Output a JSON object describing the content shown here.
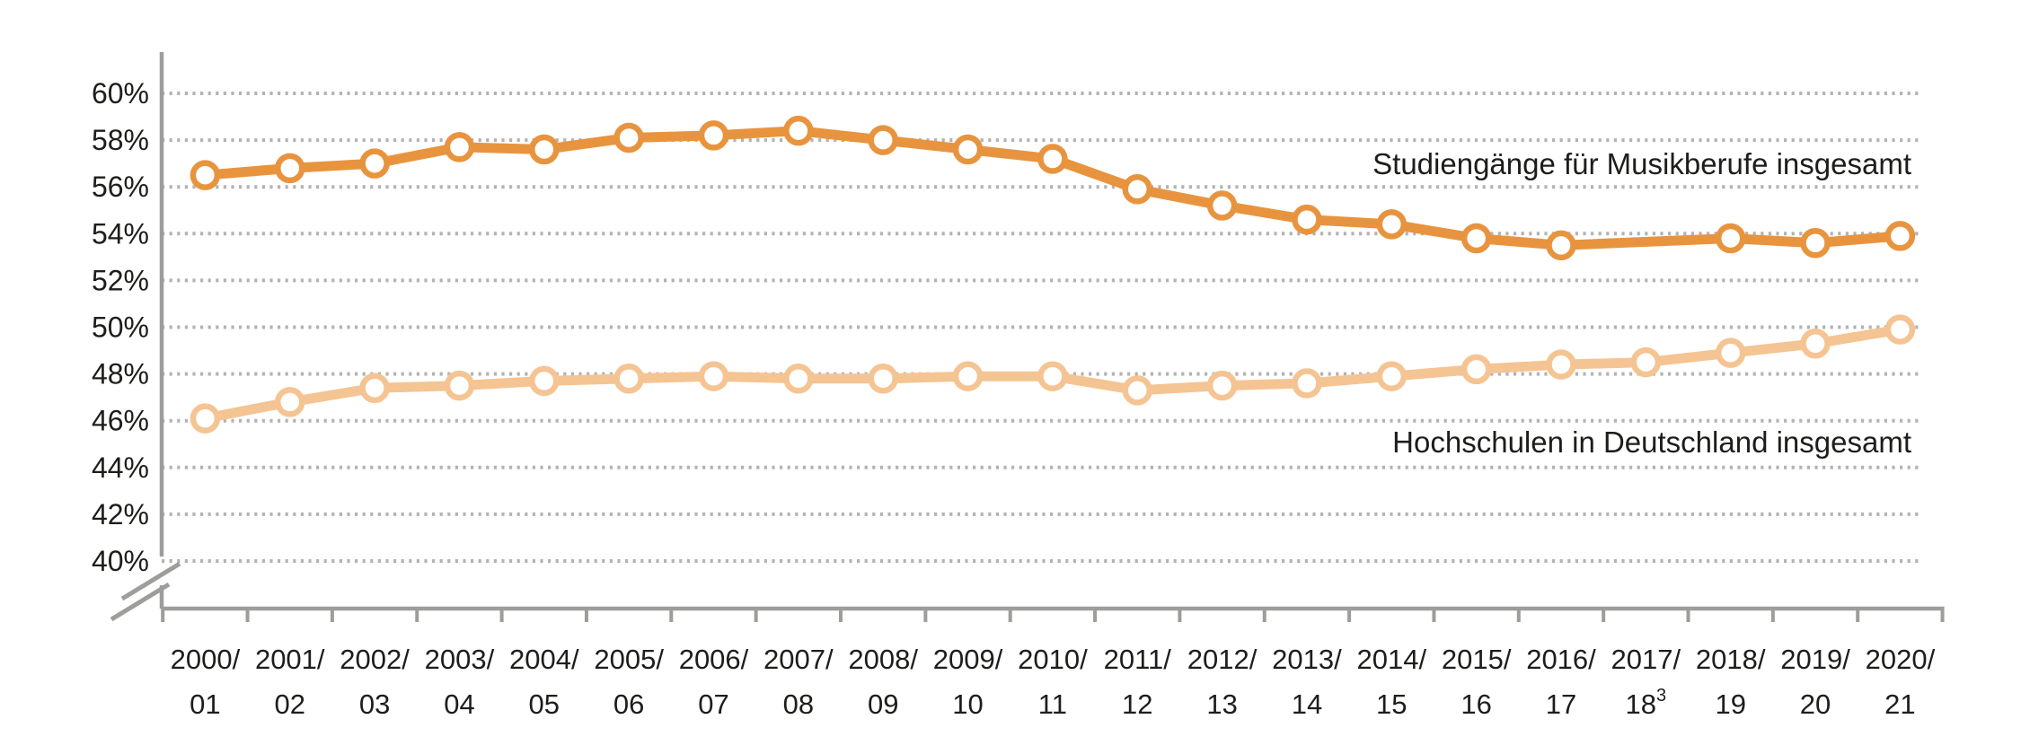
{
  "page": {
    "background": "#ffffff"
  },
  "chart_data": {
    "type": "line",
    "title": "",
    "xlabel": "",
    "ylabel": "",
    "y_axis": {
      "min": 40,
      "max": 60,
      "step": 2,
      "unit": "%",
      "tick_labels": [
        "60%",
        "58%",
        "56%",
        "54%",
        "52%",
        "50%",
        "48%",
        "46%",
        "44%",
        "42%",
        "40%"
      ],
      "axis_break_below_min": true
    },
    "grid": "dotted-horizontal",
    "grid_color": "#b3b3b3",
    "axis_color": "#9d9d9c",
    "text_color": "#1d1d1b",
    "legend_position": "inline-right",
    "x_categories": [
      {
        "top": "2000/",
        "bottom": "01"
      },
      {
        "top": "2001/",
        "bottom": "02"
      },
      {
        "top": "2002/",
        "bottom": "03"
      },
      {
        "top": "2003/",
        "bottom": "04"
      },
      {
        "top": "2004/",
        "bottom": "05"
      },
      {
        "top": "2005/",
        "bottom": "06"
      },
      {
        "top": "2006/",
        "bottom": "07"
      },
      {
        "top": "2007/",
        "bottom": "08"
      },
      {
        "top": "2008/",
        "bottom": "09"
      },
      {
        "top": "2009/",
        "bottom": "10"
      },
      {
        "top": "2010/",
        "bottom": "11"
      },
      {
        "top": "2011/",
        "bottom": "12"
      },
      {
        "top": "2012/",
        "bottom": "13"
      },
      {
        "top": "2013/",
        "bottom": "14"
      },
      {
        "top": "2014/",
        "bottom": "15"
      },
      {
        "top": "2015/",
        "bottom": "16"
      },
      {
        "top": "2016/",
        "bottom": "17"
      },
      {
        "top": "2017/",
        "bottom": "18",
        "sup": "3"
      },
      {
        "top": "2018/",
        "bottom": "19"
      },
      {
        "top": "2019/",
        "bottom": "20"
      },
      {
        "top": "2020/",
        "bottom": "21"
      }
    ],
    "series": [
      {
        "name": "Studiengänge für Musikberufe insgesamt",
        "color": "#e8943f",
        "values": [
          56.5,
          56.8,
          57.0,
          57.7,
          57.6,
          58.1,
          58.2,
          58.4,
          58.0,
          57.6,
          57.2,
          55.9,
          55.2,
          54.6,
          54.4,
          53.8,
          53.5,
          null,
          53.8,
          53.6,
          53.9
        ],
        "no_marker_years": [
          "2017/18"
        ]
      },
      {
        "name": "Hochschulen in Deutschland insgesamt",
        "color": "#f5c493",
        "values": [
          46.1,
          46.8,
          47.4,
          47.5,
          47.7,
          47.8,
          47.9,
          47.8,
          47.8,
          47.9,
          47.9,
          47.3,
          47.5,
          47.6,
          47.9,
          48.2,
          48.4,
          48.5,
          48.9,
          49.3,
          49.9
        ],
        "no_marker_years": []
      }
    ]
  }
}
